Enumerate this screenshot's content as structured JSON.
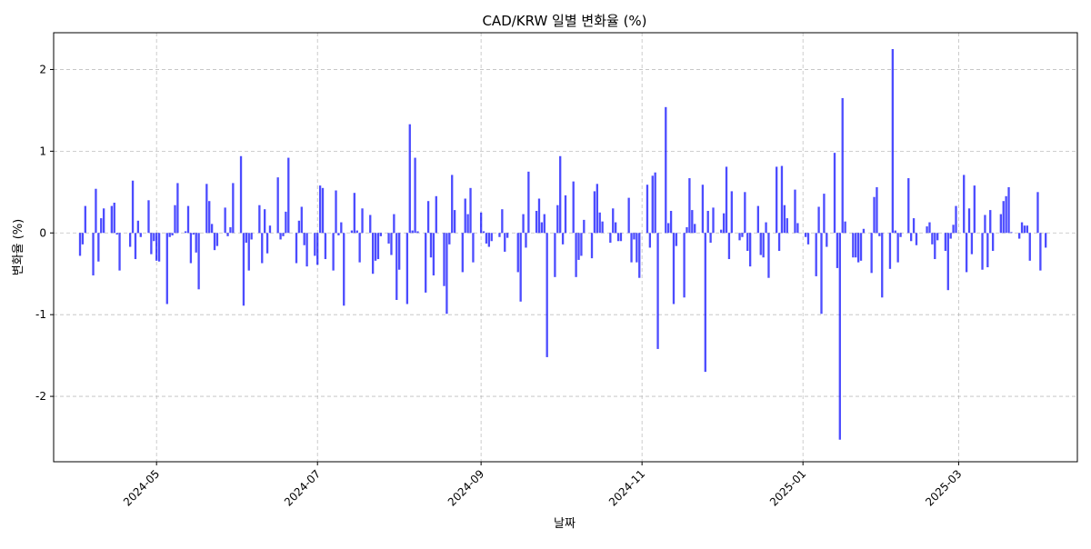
{
  "chart_data": {
    "type": "bar",
    "title": "CAD/KRW 일별 변화율 (%)",
    "xlabel": "날짜",
    "ylabel": "변화율 (%)",
    "grid": true,
    "bar_color": "#0000ff",
    "xlim": [
      "2024-03-23",
      "2025-04-15"
    ],
    "ylim": [
      -2.8,
      2.45
    ],
    "yticks": [
      {
        "value": -2,
        "label": "-2"
      },
      {
        "value": -1,
        "label": "-1"
      },
      {
        "value": 0,
        "label": "0"
      },
      {
        "value": 1,
        "label": "1"
      },
      {
        "value": 2,
        "label": "2"
      }
    ],
    "xticks": [
      {
        "value": "2024-05-01",
        "label": "2024-05"
      },
      {
        "value": "2024-07-01",
        "label": "2024-07"
      },
      {
        "value": "2024-09-01",
        "label": "2024-09"
      },
      {
        "value": "2024-11-01",
        "label": "2024-11"
      },
      {
        "value": "2025-01-01",
        "label": "2025-01"
      },
      {
        "value": "2025-03-01",
        "label": "2025-03"
      }
    ],
    "points": [
      {
        "date": "2024-04-02",
        "value": -0.28
      },
      {
        "date": "2024-04-03",
        "value": -0.14
      },
      {
        "date": "2024-04-04",
        "value": 0.33
      },
      {
        "date": "2024-04-07",
        "value": -0.52
      },
      {
        "date": "2024-04-08",
        "value": 0.54
      },
      {
        "date": "2024-04-09",
        "value": -0.35
      },
      {
        "date": "2024-04-10",
        "value": 0.18
      },
      {
        "date": "2024-04-11",
        "value": 0.3
      },
      {
        "date": "2024-04-14",
        "value": 0.33
      },
      {
        "date": "2024-04-15",
        "value": 0.37
      },
      {
        "date": "2024-04-16",
        "value": -0.02
      },
      {
        "date": "2024-04-17",
        "value": -0.46
      },
      {
        "date": "2024-04-21",
        "value": -0.17
      },
      {
        "date": "2024-04-22",
        "value": 0.64
      },
      {
        "date": "2024-04-23",
        "value": -0.32
      },
      {
        "date": "2024-04-24",
        "value": 0.15
      },
      {
        "date": "2024-04-25",
        "value": -0.05
      },
      {
        "date": "2024-04-28",
        "value": 0.4
      },
      {
        "date": "2024-04-29",
        "value": -0.26
      },
      {
        "date": "2024-04-30",
        "value": -0.1
      },
      {
        "date": "2024-05-01",
        "value": -0.34
      },
      {
        "date": "2024-05-02",
        "value": -0.35
      },
      {
        "date": "2024-05-05",
        "value": -0.87
      },
      {
        "date": "2024-05-06",
        "value": -0.05
      },
      {
        "date": "2024-05-07",
        "value": -0.03
      },
      {
        "date": "2024-05-08",
        "value": 0.34
      },
      {
        "date": "2024-05-09",
        "value": 0.61
      },
      {
        "date": "2024-05-12",
        "value": 0.02
      },
      {
        "date": "2024-05-13",
        "value": 0.33
      },
      {
        "date": "2024-05-14",
        "value": -0.37
      },
      {
        "date": "2024-05-15",
        "value": -0.02
      },
      {
        "date": "2024-05-16",
        "value": -0.24
      },
      {
        "date": "2024-05-17",
        "value": -0.69
      },
      {
        "date": "2024-05-20",
        "value": 0.6
      },
      {
        "date": "2024-05-21",
        "value": 0.39
      },
      {
        "date": "2024-05-22",
        "value": 0.11
      },
      {
        "date": "2024-05-23",
        "value": -0.21
      },
      {
        "date": "2024-05-24",
        "value": -0.16
      },
      {
        "date": "2024-05-27",
        "value": 0.31
      },
      {
        "date": "2024-05-28",
        "value": -0.04
      },
      {
        "date": "2024-05-29",
        "value": 0.07
      },
      {
        "date": "2024-05-30",
        "value": 0.61
      },
      {
        "date": "2024-06-02",
        "value": 0.94
      },
      {
        "date": "2024-06-03",
        "value": -0.89
      },
      {
        "date": "2024-06-04",
        "value": -0.12
      },
      {
        "date": "2024-06-05",
        "value": -0.46
      },
      {
        "date": "2024-06-06",
        "value": -0.08
      },
      {
        "date": "2024-06-09",
        "value": 0.34
      },
      {
        "date": "2024-06-10",
        "value": -0.37
      },
      {
        "date": "2024-06-11",
        "value": 0.29
      },
      {
        "date": "2024-06-12",
        "value": -0.25
      },
      {
        "date": "2024-06-13",
        "value": 0.09
      },
      {
        "date": "2024-06-16",
        "value": 0.68
      },
      {
        "date": "2024-06-17",
        "value": -0.08
      },
      {
        "date": "2024-06-18",
        "value": -0.04
      },
      {
        "date": "2024-06-19",
        "value": 0.26
      },
      {
        "date": "2024-06-20",
        "value": 0.92
      },
      {
        "date": "2024-06-23",
        "value": -0.37
      },
      {
        "date": "2024-06-24",
        "value": 0.15
      },
      {
        "date": "2024-06-25",
        "value": 0.32
      },
      {
        "date": "2024-06-26",
        "value": -0.15
      },
      {
        "date": "2024-06-27",
        "value": -0.41
      },
      {
        "date": "2024-06-30",
        "value": -0.28
      },
      {
        "date": "2024-07-01",
        "value": -0.39
      },
      {
        "date": "2024-07-02",
        "value": 0.58
      },
      {
        "date": "2024-07-03",
        "value": 0.55
      },
      {
        "date": "2024-07-04",
        "value": -0.32
      },
      {
        "date": "2024-07-07",
        "value": -0.46
      },
      {
        "date": "2024-07-08",
        "value": 0.52
      },
      {
        "date": "2024-07-09",
        "value": -0.03
      },
      {
        "date": "2024-07-10",
        "value": 0.13
      },
      {
        "date": "2024-07-11",
        "value": -0.89
      },
      {
        "date": "2024-07-14",
        "value": 0.03
      },
      {
        "date": "2024-07-15",
        "value": 0.49
      },
      {
        "date": "2024-07-16",
        "value": 0.03
      },
      {
        "date": "2024-07-17",
        "value": -0.36
      },
      {
        "date": "2024-07-18",
        "value": 0.3
      },
      {
        "date": "2024-07-21",
        "value": 0.22
      },
      {
        "date": "2024-07-22",
        "value": -0.5
      },
      {
        "date": "2024-07-23",
        "value": -0.34
      },
      {
        "date": "2024-07-24",
        "value": -0.32
      },
      {
        "date": "2024-07-25",
        "value": -0.04
      },
      {
        "date": "2024-07-28",
        "value": -0.13
      },
      {
        "date": "2024-07-29",
        "value": -0.27
      },
      {
        "date": "2024-07-30",
        "value": 0.23
      },
      {
        "date": "2024-07-31",
        "value": -0.82
      },
      {
        "date": "2024-08-01",
        "value": -0.45
      },
      {
        "date": "2024-08-04",
        "value": -0.87
      },
      {
        "date": "2024-08-05",
        "value": 1.33
      },
      {
        "date": "2024-08-06",
        "value": 0.03
      },
      {
        "date": "2024-08-07",
        "value": 0.92
      },
      {
        "date": "2024-08-08",
        "value": 0.02
      },
      {
        "date": "2024-08-11",
        "value": -0.73
      },
      {
        "date": "2024-08-12",
        "value": 0.39
      },
      {
        "date": "2024-08-13",
        "value": -0.3
      },
      {
        "date": "2024-08-14",
        "value": -0.52
      },
      {
        "date": "2024-08-15",
        "value": 0.45
      },
      {
        "date": "2024-08-18",
        "value": -0.65
      },
      {
        "date": "2024-08-19",
        "value": -0.99
      },
      {
        "date": "2024-08-20",
        "value": -0.14
      },
      {
        "date": "2024-08-21",
        "value": 0.71
      },
      {
        "date": "2024-08-22",
        "value": 0.28
      },
      {
        "date": "2024-08-25",
        "value": -0.48
      },
      {
        "date": "2024-08-26",
        "value": 0.42
      },
      {
        "date": "2024-08-27",
        "value": 0.23
      },
      {
        "date": "2024-08-28",
        "value": 0.55
      },
      {
        "date": "2024-08-29",
        "value": -0.36
      },
      {
        "date": "2024-09-01",
        "value": 0.25
      },
      {
        "date": "2024-09-02",
        "value": 0.02
      },
      {
        "date": "2024-09-03",
        "value": -0.13
      },
      {
        "date": "2024-09-04",
        "value": -0.17
      },
      {
        "date": "2024-09-05",
        "value": -0.1
      },
      {
        "date": "2024-09-08",
        "value": -0.05
      },
      {
        "date": "2024-09-09",
        "value": 0.29
      },
      {
        "date": "2024-09-10",
        "value": -0.23
      },
      {
        "date": "2024-09-11",
        "value": -0.06
      },
      {
        "date": "2024-09-15",
        "value": -0.48
      },
      {
        "date": "2024-09-16",
        "value": -0.84
      },
      {
        "date": "2024-09-17",
        "value": 0.23
      },
      {
        "date": "2024-09-18",
        "value": -0.18
      },
      {
        "date": "2024-09-19",
        "value": 0.75
      },
      {
        "date": "2024-09-22",
        "value": 0.27
      },
      {
        "date": "2024-09-23",
        "value": 0.42
      },
      {
        "date": "2024-09-24",
        "value": 0.13
      },
      {
        "date": "2024-09-25",
        "value": 0.23
      },
      {
        "date": "2024-09-26",
        "value": -1.52
      },
      {
        "date": "2024-09-29",
        "value": -0.54
      },
      {
        "date": "2024-09-30",
        "value": 0.34
      },
      {
        "date": "2024-10-01",
        "value": 0.94
      },
      {
        "date": "2024-10-02",
        "value": -0.14
      },
      {
        "date": "2024-10-03",
        "value": 0.46
      },
      {
        "date": "2024-10-06",
        "value": 0.63
      },
      {
        "date": "2024-10-07",
        "value": -0.54
      },
      {
        "date": "2024-10-08",
        "value": -0.33
      },
      {
        "date": "2024-10-09",
        "value": -0.28
      },
      {
        "date": "2024-10-10",
        "value": 0.16
      },
      {
        "date": "2024-10-13",
        "value": -0.31
      },
      {
        "date": "2024-10-14",
        "value": 0.51
      },
      {
        "date": "2024-10-15",
        "value": 0.6
      },
      {
        "date": "2024-10-16",
        "value": 0.25
      },
      {
        "date": "2024-10-17",
        "value": 0.14
      },
      {
        "date": "2024-10-20",
        "value": -0.12
      },
      {
        "date": "2024-10-21",
        "value": 0.3
      },
      {
        "date": "2024-10-22",
        "value": 0.13
      },
      {
        "date": "2024-10-23",
        "value": -0.1
      },
      {
        "date": "2024-10-24",
        "value": -0.1
      },
      {
        "date": "2024-10-27",
        "value": 0.43
      },
      {
        "date": "2024-10-28",
        "value": -0.36
      },
      {
        "date": "2024-10-29",
        "value": -0.08
      },
      {
        "date": "2024-10-30",
        "value": -0.36
      },
      {
        "date": "2024-10-31",
        "value": -0.55
      },
      {
        "date": "2024-11-03",
        "value": 0.59
      },
      {
        "date": "2024-11-04",
        "value": -0.18
      },
      {
        "date": "2024-11-05",
        "value": 0.7
      },
      {
        "date": "2024-11-06",
        "value": 0.74
      },
      {
        "date": "2024-11-07",
        "value": -1.42
      },
      {
        "date": "2024-11-10",
        "value": 1.54
      },
      {
        "date": "2024-11-11",
        "value": 0.12
      },
      {
        "date": "2024-11-12",
        "value": 0.27
      },
      {
        "date": "2024-11-13",
        "value": -0.87
      },
      {
        "date": "2024-11-14",
        "value": -0.16
      },
      {
        "date": "2024-11-17",
        "value": -0.79
      },
      {
        "date": "2024-11-18",
        "value": 0.07
      },
      {
        "date": "2024-11-19",
        "value": 0.67
      },
      {
        "date": "2024-11-20",
        "value": 0.28
      },
      {
        "date": "2024-11-21",
        "value": 0.11
      },
      {
        "date": "2024-11-24",
        "value": 0.59
      },
      {
        "date": "2024-11-25",
        "value": -1.7
      },
      {
        "date": "2024-11-26",
        "value": 0.27
      },
      {
        "date": "2024-11-27",
        "value": -0.12
      },
      {
        "date": "2024-11-28",
        "value": 0.31
      },
      {
        "date": "2024-12-01",
        "value": 0.04
      },
      {
        "date": "2024-12-02",
        "value": 0.24
      },
      {
        "date": "2024-12-03",
        "value": 0.81
      },
      {
        "date": "2024-12-04",
        "value": -0.32
      },
      {
        "date": "2024-12-05",
        "value": 0.51
      },
      {
        "date": "2024-12-08",
        "value": -0.09
      },
      {
        "date": "2024-12-09",
        "value": -0.05
      },
      {
        "date": "2024-12-10",
        "value": 0.5
      },
      {
        "date": "2024-12-11",
        "value": -0.22
      },
      {
        "date": "2024-12-12",
        "value": -0.41
      },
      {
        "date": "2024-12-15",
        "value": 0.33
      },
      {
        "date": "2024-12-16",
        "value": -0.27
      },
      {
        "date": "2024-12-17",
        "value": -0.3
      },
      {
        "date": "2024-12-18",
        "value": 0.13
      },
      {
        "date": "2024-12-19",
        "value": -0.55
      },
      {
        "date": "2024-12-22",
        "value": 0.81
      },
      {
        "date": "2024-12-23",
        "value": -0.22
      },
      {
        "date": "2024-12-24",
        "value": 0.82
      },
      {
        "date": "2024-12-25",
        "value": 0.34
      },
      {
        "date": "2024-12-26",
        "value": 0.18
      },
      {
        "date": "2024-12-29",
        "value": 0.53
      },
      {
        "date": "2024-12-30",
        "value": 0.12
      },
      {
        "date": "2025-01-02",
        "value": -0.05
      },
      {
        "date": "2025-01-03",
        "value": -0.14
      },
      {
        "date": "2025-01-06",
        "value": -0.53
      },
      {
        "date": "2025-01-07",
        "value": 0.32
      },
      {
        "date": "2025-01-08",
        "value": -0.99
      },
      {
        "date": "2025-01-09",
        "value": 0.48
      },
      {
        "date": "2025-01-10",
        "value": -0.17
      },
      {
        "date": "2025-01-13",
        "value": 0.98
      },
      {
        "date": "2025-01-14",
        "value": -0.43
      },
      {
        "date": "2025-01-15",
        "value": -2.53
      },
      {
        "date": "2025-01-16",
        "value": 1.65
      },
      {
        "date": "2025-01-17",
        "value": 0.14
      },
      {
        "date": "2025-01-20",
        "value": -0.3
      },
      {
        "date": "2025-01-21",
        "value": -0.3
      },
      {
        "date": "2025-01-22",
        "value": -0.36
      },
      {
        "date": "2025-01-23",
        "value": -0.34
      },
      {
        "date": "2025-01-24",
        "value": 0.05
      },
      {
        "date": "2025-01-27",
        "value": -0.49
      },
      {
        "date": "2025-01-28",
        "value": 0.44
      },
      {
        "date": "2025-01-29",
        "value": 0.56
      },
      {
        "date": "2025-01-30",
        "value": -0.04
      },
      {
        "date": "2025-01-31",
        "value": -0.79
      },
      {
        "date": "2025-02-03",
        "value": -0.44
      },
      {
        "date": "2025-02-04",
        "value": 2.25
      },
      {
        "date": "2025-02-05",
        "value": 0.03
      },
      {
        "date": "2025-02-06",
        "value": -0.36
      },
      {
        "date": "2025-02-07",
        "value": -0.05
      },
      {
        "date": "2025-02-10",
        "value": 0.67
      },
      {
        "date": "2025-02-11",
        "value": -0.1
      },
      {
        "date": "2025-02-12",
        "value": 0.18
      },
      {
        "date": "2025-02-13",
        "value": -0.15
      },
      {
        "date": "2025-02-17",
        "value": 0.08
      },
      {
        "date": "2025-02-18",
        "value": 0.13
      },
      {
        "date": "2025-02-19",
        "value": -0.14
      },
      {
        "date": "2025-02-20",
        "value": -0.32
      },
      {
        "date": "2025-02-21",
        "value": -0.09
      },
      {
        "date": "2025-02-24",
        "value": -0.22
      },
      {
        "date": "2025-02-25",
        "value": -0.7
      },
      {
        "date": "2025-02-26",
        "value": -0.07
      },
      {
        "date": "2025-02-27",
        "value": 0.1
      },
      {
        "date": "2025-02-28",
        "value": 0.33
      },
      {
        "date": "2025-03-03",
        "value": 0.71
      },
      {
        "date": "2025-03-04",
        "value": -0.48
      },
      {
        "date": "2025-03-05",
        "value": 0.3
      },
      {
        "date": "2025-03-06",
        "value": -0.26
      },
      {
        "date": "2025-03-07",
        "value": 0.58
      },
      {
        "date": "2025-03-10",
        "value": -0.45
      },
      {
        "date": "2025-03-11",
        "value": 0.22
      },
      {
        "date": "2025-03-12",
        "value": -0.42
      },
      {
        "date": "2025-03-13",
        "value": 0.28
      },
      {
        "date": "2025-03-14",
        "value": -0.22
      },
      {
        "date": "2025-03-17",
        "value": 0.23
      },
      {
        "date": "2025-03-18",
        "value": 0.39
      },
      {
        "date": "2025-03-19",
        "value": 0.45
      },
      {
        "date": "2025-03-20",
        "value": 0.56
      },
      {
        "date": "2025-03-21",
        "value": 0.01
      },
      {
        "date": "2025-03-24",
        "value": -0.07
      },
      {
        "date": "2025-03-25",
        "value": 0.13
      },
      {
        "date": "2025-03-26",
        "value": 0.09
      },
      {
        "date": "2025-03-27",
        "value": 0.09
      },
      {
        "date": "2025-03-28",
        "value": -0.34
      },
      {
        "date": "2025-03-31",
        "value": 0.5
      },
      {
        "date": "2025-04-01",
        "value": -0.46
      },
      {
        "date": "2025-04-03",
        "value": -0.18
      }
    ]
  }
}
